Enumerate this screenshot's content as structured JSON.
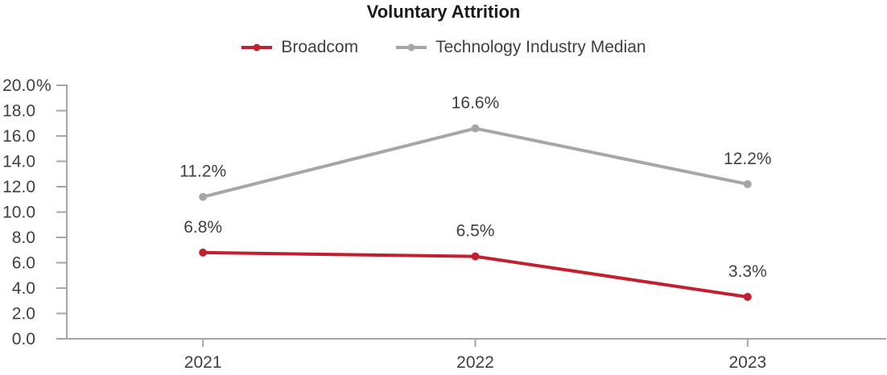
{
  "chart_data": {
    "type": "line",
    "title": "Voluntary Attrition",
    "categories": [
      "2021",
      "2022",
      "2023"
    ],
    "series": [
      {
        "name": "Broadcom",
        "color": "#C1202F",
        "values": [
          6.8,
          6.5,
          3.3
        ],
        "point_labels": [
          "6.8%",
          "6.5%",
          "3.3%"
        ]
      },
      {
        "name": "Technology Industry Median",
        "color": "#A6A6A6",
        "values": [
          11.2,
          16.6,
          12.2
        ],
        "point_labels": [
          "11.2%",
          "16.6%",
          "12.2%"
        ]
      }
    ],
    "y_axis": {
      "min": 0,
      "max": 20,
      "step": 2,
      "tick_labels": [
        "0.0",
        "2.0",
        "4.0",
        "6.0",
        "8.0",
        "10.0",
        "12.0",
        "14.0",
        "16.0",
        "18.0",
        "20.0%"
      ]
    },
    "x_axis": {
      "tick_labels": [
        "2021",
        "2022",
        "2023"
      ]
    },
    "ylim": [
      0,
      20
    ],
    "grid": false,
    "legend_position": "top",
    "marker": "circle"
  },
  "colors": {
    "axis": "#A6A6A6",
    "text": "#404040",
    "title": "#1A1A1A",
    "background": "#FFFFFF",
    "broadcom_red": "#C1202F",
    "industry_gray": "#A6A6A6"
  }
}
